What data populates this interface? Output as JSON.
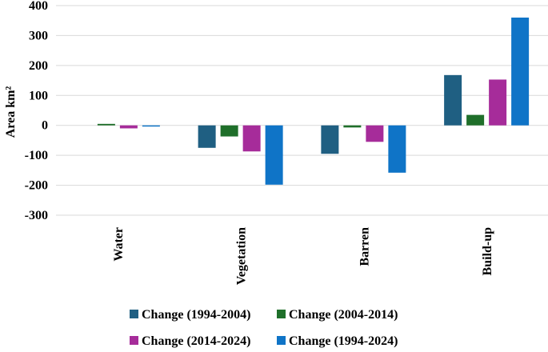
{
  "chart_data": {
    "type": "bar",
    "title": "",
    "xlabel": "",
    "ylabel": "Area km²",
    "ylim": [
      -300,
      400
    ],
    "yticks": [
      -300,
      -200,
      -100,
      0,
      100,
      200,
      300,
      400
    ],
    "ytick_labels": [
      "-300",
      "-200",
      "-100",
      "0",
      "100",
      "200",
      "300",
      "400"
    ],
    "categories": [
      "Water",
      "Vegetation",
      "Barren",
      "Build-up"
    ],
    "series": [
      {
        "name": "Change (1994-2004)",
        "color": "#1f5f82",
        "values": [
          0,
          -75,
          -95,
          168
        ]
      },
      {
        "name": "Change (2004-2014)",
        "color": "#1f6f2a",
        "values": [
          5,
          -37,
          -7,
          35
        ]
      },
      {
        "name": "Change (2014-2024)",
        "color": "#a62c9a",
        "values": [
          -10,
          -87,
          -55,
          153
        ]
      },
      {
        "name": "Change (1994-2024)",
        "color": "#0f74c7",
        "values": [
          -3,
          -198,
          -158,
          360
        ]
      }
    ],
    "legend_position": "bottom",
    "grid": true
  }
}
